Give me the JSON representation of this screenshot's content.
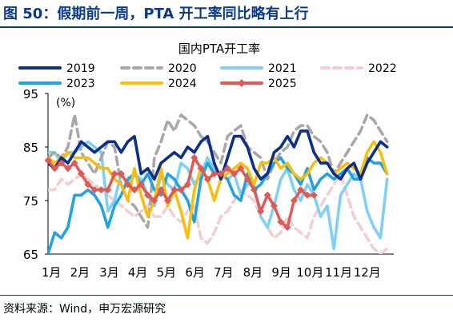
{
  "figure": {
    "title": "图 50：假期前一周，PTA 开工率同比略有上行",
    "source": "资料来源：Wind，申万宏源研究"
  },
  "colors": {
    "header_blue": "#0b3a8c",
    "s2019": "#0b2f8a",
    "s2020": "#a8a8a8",
    "s2021": "#7fd0f5",
    "s2022": "#f3cdd0",
    "s2023": "#22a3e0",
    "s2024": "#f7be0e",
    "s2025": "#e05a55"
  },
  "chart_data": {
    "type": "line",
    "title": "国内PTA开工率",
    "unit_label": "(%)",
    "ylim": [
      65,
      95
    ],
    "yticks": [
      65,
      75,
      85,
      95
    ],
    "xlim": [
      0,
      52
    ],
    "x_tick_positions": [
      0.5,
      4.8,
      9.2,
      13.5,
      17.8,
      22.1,
      26.4,
      30.8,
      35.1,
      39.4,
      43.7,
      48.0
    ],
    "x_tick_labels": [
      "1月",
      "2月",
      "3月",
      "4月",
      "5月",
      "6月",
      "7月",
      "8月",
      "9月",
      "10月",
      "11月",
      "12月"
    ],
    "legend_position": "top",
    "grid": false,
    "series": [
      {
        "name": "2019",
        "style": "solid",
        "color": "#0b2f8a",
        "x": [
          0,
          1,
          2,
          3,
          4,
          5,
          6,
          7,
          8,
          9,
          10,
          11,
          12,
          13,
          14,
          15,
          16,
          17,
          18,
          19,
          20,
          21,
          22,
          23,
          24,
          25,
          26,
          27,
          28,
          29,
          30,
          31,
          32,
          33,
          34,
          35,
          36,
          37,
          38,
          39,
          40,
          41,
          42,
          43,
          44,
          45,
          46,
          47,
          48,
          49,
          50,
          51
        ],
        "values": [
          82,
          81,
          83,
          82,
          84,
          86,
          85,
          84,
          85,
          86,
          86,
          84,
          86,
          87,
          80,
          81,
          79,
          82,
          83,
          84,
          83,
          85,
          84,
          86,
          87,
          82,
          79,
          83,
          87,
          87,
          85,
          81,
          79,
          80,
          84,
          85,
          87,
          85,
          88,
          88,
          84,
          82,
          82,
          80,
          79,
          81,
          82,
          79,
          82,
          84,
          86,
          85
        ]
      },
      {
        "name": "2020",
        "style": "dashed",
        "color": "#a8a8a8",
        "x": [
          0,
          1,
          2,
          3,
          4,
          5,
          6,
          7,
          8,
          9,
          10,
          11,
          12,
          13,
          14,
          15,
          16,
          17,
          18,
          19,
          20,
          21,
          22,
          23,
          24,
          25,
          26,
          27,
          28,
          29,
          30,
          31,
          32,
          33,
          34,
          35,
          36,
          37,
          38,
          39,
          40,
          41,
          42,
          43,
          44,
          45,
          46,
          47,
          48,
          49,
          50,
          51
        ],
        "values": [
          83,
          84,
          83,
          85,
          91,
          84,
          82,
          80,
          83,
          86,
          85,
          78,
          75,
          74,
          72,
          70,
          83,
          86,
          90,
          88,
          91,
          90,
          89,
          87,
          86,
          84,
          82,
          87,
          88,
          89,
          85,
          84,
          83,
          79,
          82,
          84,
          85,
          88,
          89,
          89,
          87,
          86,
          84,
          80,
          82,
          84,
          86,
          88,
          91,
          90,
          88,
          86
        ]
      },
      {
        "name": "2021",
        "style": "solid",
        "color": "#7fd0f5",
        "x": [
          0,
          1,
          2,
          3,
          4,
          5,
          6,
          7,
          8,
          9,
          10,
          11,
          12,
          13,
          14,
          15,
          16,
          17,
          18,
          19,
          20,
          21,
          22,
          23,
          24,
          25,
          26,
          27,
          28,
          29,
          30,
          31,
          32,
          33,
          34,
          35,
          36,
          37,
          38,
          39,
          40,
          41,
          42,
          43,
          44,
          45,
          46,
          47,
          48,
          49,
          50,
          51
        ],
        "values": [
          84,
          84,
          82,
          84,
          84,
          85,
          86,
          85,
          84,
          73,
          75,
          80,
          78,
          80,
          79,
          76,
          74,
          80,
          78,
          77,
          82,
          81,
          78,
          80,
          83,
          81,
          80,
          79,
          80,
          76,
          78,
          78,
          72,
          70,
          74,
          79,
          81,
          77,
          75,
          78,
          76,
          72,
          74,
          66,
          76,
          78,
          80,
          79,
          73,
          70,
          68,
          79
        ]
      },
      {
        "name": "2022",
        "style": "dashed",
        "color": "#f3cdd0",
        "x": [
          0,
          1,
          2,
          3,
          4,
          5,
          6,
          7,
          8,
          9,
          10,
          11,
          12,
          13,
          14,
          15,
          16,
          17,
          18,
          19,
          20,
          21,
          22,
          23,
          24,
          25,
          26,
          27,
          28,
          29,
          30,
          31,
          32,
          33,
          34,
          35,
          36,
          37,
          38,
          39,
          40,
          41,
          42,
          43,
          44,
          45,
          46,
          47,
          48,
          49,
          50,
          51
        ],
        "values": [
          77,
          77,
          79,
          78,
          79,
          80,
          79,
          78,
          77,
          76,
          75,
          74,
          73,
          72,
          73,
          74,
          72,
          72,
          74,
          72,
          71,
          73,
          74,
          68,
          67,
          69,
          72,
          73,
          75,
          77,
          76,
          75,
          72,
          70,
          68,
          69,
          72,
          70,
          69,
          68,
          72,
          74,
          76,
          78,
          80,
          76,
          72,
          70,
          68,
          66,
          65,
          66
        ]
      },
      {
        "name": "2023",
        "style": "solid",
        "color": "#22a3e0",
        "x": [
          0,
          1,
          2,
          3,
          4,
          5,
          6,
          7,
          8,
          9,
          10,
          11,
          12,
          13,
          14,
          15,
          16,
          17,
          18,
          19,
          20,
          21,
          22,
          23,
          24,
          25,
          26,
          27,
          28,
          29,
          30,
          31,
          32,
          33,
          34,
          35,
          36,
          37,
          38,
          39,
          40,
          41,
          42,
          43,
          44,
          45,
          46,
          47,
          48,
          49,
          50,
          51
        ],
        "values": [
          65,
          69,
          68,
          70,
          76,
          76,
          77,
          76,
          74,
          70,
          74,
          76,
          79,
          80,
          78,
          80,
          77,
          76,
          80,
          79,
          77,
          75,
          71,
          79,
          82,
          80,
          80,
          79,
          76,
          75,
          80,
          77,
          78,
          80,
          82,
          83,
          81,
          80,
          78,
          81,
          77,
          79,
          80,
          79,
          80,
          81,
          79,
          79,
          83,
          82,
          82,
          80
        ]
      },
      {
        "name": "2024",
        "style": "solid",
        "color": "#f7be0e",
        "x": [
          0,
          1,
          2,
          3,
          4,
          5,
          6,
          7,
          8,
          9,
          10,
          11,
          12,
          13,
          14,
          15,
          16,
          17,
          18,
          19,
          20,
          21,
          22,
          23,
          24,
          25,
          26,
          27,
          28,
          29,
          30,
          31,
          32,
          33,
          34,
          35,
          36,
          37,
          38,
          39,
          40,
          41,
          42,
          43,
          44,
          45,
          46,
          47,
          48,
          49,
          50,
          51
        ],
        "values": [
          83,
          82,
          83,
          84,
          83,
          83,
          83,
          82,
          81,
          81,
          79,
          78,
          75,
          81,
          76,
          72,
          75,
          81,
          74,
          77,
          73,
          68,
          77,
          81,
          79,
          75,
          79,
          80,
          81,
          82,
          81,
          78,
          82,
          82,
          83,
          81,
          82,
          80,
          79,
          80,
          82,
          83,
          82,
          80,
          81,
          82,
          81,
          80,
          84,
          86,
          84,
          80
        ]
      },
      {
        "name": "2025",
        "style": "markers",
        "color": "#e05a55",
        "x": [
          0,
          1,
          2,
          3,
          4,
          5,
          6,
          7,
          8,
          9,
          10,
          11,
          12,
          13,
          14,
          15,
          16,
          17,
          18,
          19,
          20,
          21,
          22,
          23,
          24,
          25,
          26,
          27,
          28,
          29,
          30,
          31,
          32,
          33,
          34,
          35,
          36,
          37,
          38,
          39,
          40
        ],
        "values": [
          82.5,
          81,
          82,
          81,
          82,
          80,
          78,
          77,
          77,
          77,
          80,
          80,
          78,
          77,
          78,
          76,
          75,
          77,
          75,
          77,
          77,
          78,
          83,
          81,
          79,
          80,
          80,
          81,
          80,
          81,
          79,
          77,
          73,
          76,
          74,
          71,
          70,
          75,
          77,
          76,
          76
        ]
      }
    ]
  }
}
